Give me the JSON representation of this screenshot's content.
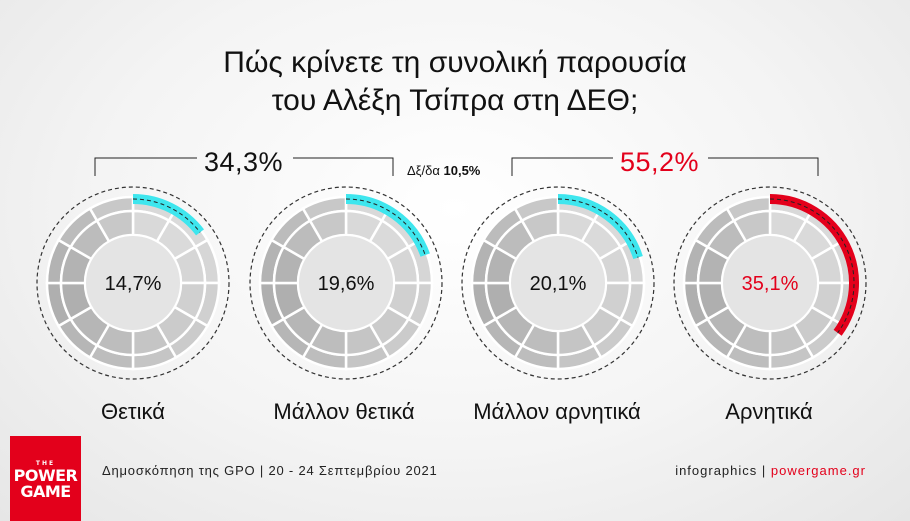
{
  "title": {
    "line1": "Πώς κρίνετε τη συνολική παρουσία",
    "line2": "του Αλέξη Τσίπρα στη ΔΕΘ;"
  },
  "groups": {
    "positive": {
      "label": "34,3%",
      "color": "#111111"
    },
    "middle": {
      "prefix": "Δξ/δα",
      "value": "10,5%"
    },
    "negative": {
      "label": "55,2%",
      "color": "#e3001b"
    }
  },
  "chart_data": {
    "type": "donut",
    "title": "Πώς κρίνετε τη συνολική παρουσία του Αλέξη Τσίπρα στη ΔΕΘ;",
    "categories": [
      "Θετικά",
      "Μάλλον θετικά",
      "Μάλλον αρνητικά",
      "Αρνητικά"
    ],
    "values": [
      14.7,
      19.6,
      20.1,
      35.1
    ],
    "value_labels": [
      "14,7%",
      "19,6%",
      "20,1%",
      "35,1%"
    ],
    "arc_colors": [
      "#3ee6ee",
      "#3ee6ee",
      "#3ee6ee",
      "#e3001b"
    ],
    "value_text_colors": [
      "#111111",
      "#111111",
      "#111111",
      "#e3001b"
    ],
    "aggregates": [
      {
        "label": "34,3%",
        "value": 34.3,
        "covers": [
          "Θετικά",
          "Μάλλον θετικά"
        ]
      },
      {
        "label": "Δξ/δα 10,5%",
        "value": 10.5
      },
      {
        "label": "55,2%",
        "value": 55.2,
        "covers": [
          "Μάλλον αρνητικά",
          "Αρνητικά"
        ]
      }
    ]
  },
  "footer": {
    "source": "Δημοσκόπηση της GPO | 20 - 24 Σεπτεμβρίου 2021",
    "credit_prefix": "infographics | ",
    "credit_brand": "powergame.gr"
  },
  "logo": {
    "the": "THE",
    "line1": "POWER",
    "line2": "GAME"
  }
}
